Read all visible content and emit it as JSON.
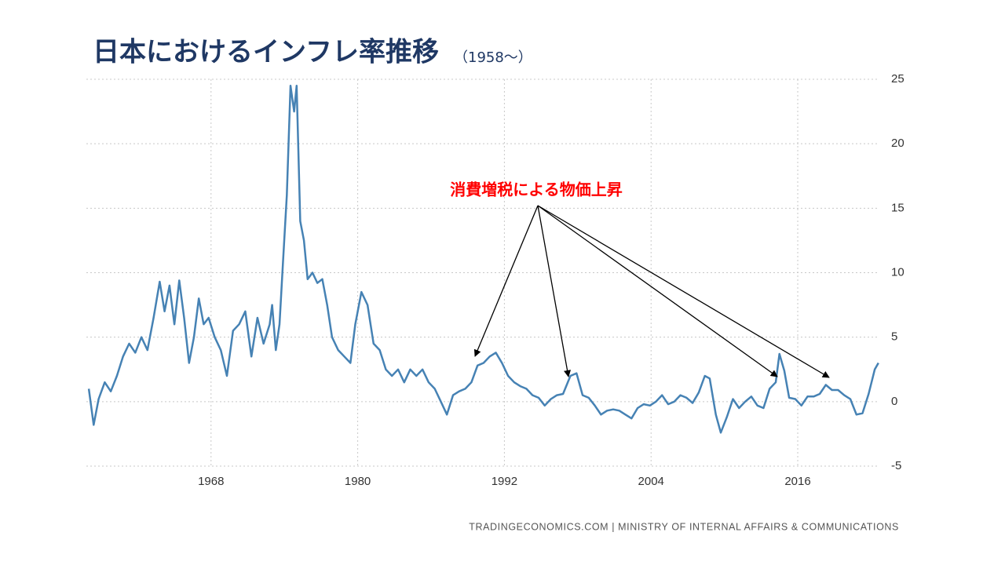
{
  "chart_data": {
    "type": "line",
    "title": "日本におけるインフレ率推移",
    "subtitle": "（1958～）",
    "annotation": "消費増税による物価上昇",
    "source": "TRADINGECONOMICS.COM | MINISTRY OF INTERNAL AFFAIRS & COMMUNICATIONS",
    "xlim": [
      1957.8,
      2023.0
    ],
    "xticks": [
      1968,
      1980,
      1992,
      2004,
      2016
    ],
    "ylim": [
      -5,
      25
    ],
    "yticks": [
      -5,
      0,
      5,
      10,
      15,
      20,
      25
    ],
    "grid": true,
    "color": "#4682b4",
    "x": [
      1958.0,
      1958.4,
      1958.8,
      1959.3,
      1959.8,
      1960.3,
      1960.8,
      1961.3,
      1961.8,
      1962.3,
      1962.8,
      1963.3,
      1963.8,
      1964.2,
      1964.6,
      1965.0,
      1965.4,
      1965.8,
      1966.2,
      1966.6,
      1967.0,
      1967.4,
      1967.8,
      1968.3,
      1968.8,
      1969.3,
      1969.8,
      1970.3,
      1970.8,
      1971.3,
      1971.8,
      1972.3,
      1972.8,
      1973.0,
      1973.3,
      1973.6,
      1973.9,
      1974.2,
      1974.5,
      1974.8,
      1975.0,
      1975.3,
      1975.6,
      1975.9,
      1976.3,
      1976.7,
      1977.1,
      1977.5,
      1977.9,
      1978.4,
      1978.9,
      1979.4,
      1979.8,
      1980.3,
      1980.8,
      1981.3,
      1981.8,
      1982.3,
      1982.8,
      1983.3,
      1983.8,
      1984.3,
      1984.8,
      1985.3,
      1985.8,
      1986.3,
      1986.8,
      1987.3,
      1987.8,
      1988.3,
      1988.8,
      1989.3,
      1989.8,
      1990.3,
      1990.8,
      1991.3,
      1991.8,
      1992.3,
      1992.8,
      1993.3,
      1993.8,
      1994.3,
      1994.8,
      1995.3,
      1995.8,
      1996.3,
      1996.8,
      1997.4,
      1997.9,
      1998.4,
      1998.9,
      1999.4,
      1999.9,
      2000.4,
      2000.9,
      2001.4,
      2001.9,
      2002.4,
      2002.9,
      2003.4,
      2003.9,
      2004.4,
      2004.9,
      2005.4,
      2005.9,
      2006.4,
      2006.9,
      2007.4,
      2007.9,
      2008.4,
      2008.8,
      2009.3,
      2009.7,
      2010.2,
      2010.7,
      2011.2,
      2011.7,
      2012.2,
      2012.7,
      2013.2,
      2013.7,
      2014.2,
      2014.5,
      2014.9,
      2015.3,
      2015.8,
      2016.3,
      2016.8,
      2017.3,
      2017.8,
      2018.3,
      2018.8,
      2019.3,
      2019.8,
      2020.3,
      2020.8,
      2021.3,
      2021.8,
      2022.3,
      2022.6
    ],
    "values": [
      1.0,
      -1.8,
      0.2,
      1.5,
      0.8,
      2.0,
      3.5,
      4.5,
      3.8,
      5.0,
      4.0,
      6.5,
      9.3,
      7.0,
      9.0,
      6.0,
      9.4,
      6.5,
      3.0,
      5.0,
      8.0,
      6.0,
      6.5,
      5.0,
      4.0,
      2.0,
      5.5,
      6.0,
      7.0,
      3.5,
      6.5,
      4.5,
      6.0,
      7.5,
      4.0,
      6.0,
      11.0,
      16.0,
      24.5,
      22.5,
      24.5,
      14.0,
      12.5,
      9.5,
      10.0,
      9.2,
      9.5,
      7.5,
      5.0,
      4.0,
      3.5,
      3.0,
      6.0,
      8.5,
      7.5,
      4.5,
      4.0,
      2.5,
      2.0,
      2.5,
      1.5,
      2.5,
      2.0,
      2.5,
      1.5,
      1.0,
      0.0,
      -1.0,
      0.5,
      0.8,
      1.0,
      1.5,
      2.8,
      3.0,
      3.5,
      3.8,
      3.0,
      2.0,
      1.5,
      1.2,
      1.0,
      0.5,
      0.3,
      -0.3,
      0.2,
      0.5,
      0.6,
      2.0,
      2.2,
      0.5,
      0.3,
      -0.3,
      -1.0,
      -0.7,
      -0.6,
      -0.7,
      -1.0,
      -1.3,
      -0.5,
      -0.2,
      -0.3,
      0.0,
      0.5,
      -0.2,
      0.0,
      0.5,
      0.3,
      -0.1,
      0.7,
      2.0,
      1.8,
      -1.0,
      -2.4,
      -1.2,
      0.2,
      -0.5,
      0.0,
      0.4,
      -0.3,
      -0.5,
      1.0,
      1.5,
      3.7,
      2.4,
      0.3,
      0.2,
      -0.3,
      0.4,
      0.4,
      0.6,
      1.3,
      0.9,
      0.9,
      0.5,
      0.2,
      -1.0,
      -0.9,
      0.6,
      2.5,
      3.0
    ]
  }
}
